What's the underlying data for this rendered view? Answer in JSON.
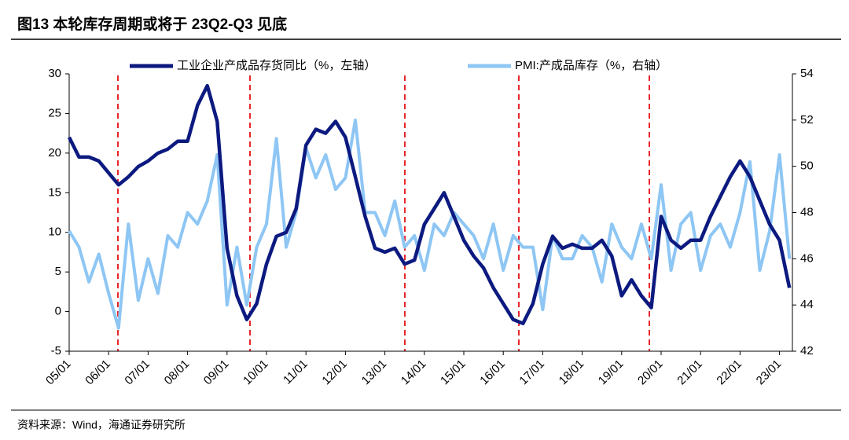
{
  "chart_data": {
    "type": "line",
    "title": "图13 本轮库存周期或将于 23Q2-Q3 见底",
    "source": "资料来源：Wind，海通证券研究所",
    "categories": [
      "05/01",
      null,
      null,
      null,
      "06/01",
      null,
      null,
      null,
      "07/01",
      null,
      null,
      null,
      "08/01",
      null,
      null,
      null,
      "09/01",
      null,
      null,
      null,
      "10/01",
      null,
      null,
      null,
      "11/01",
      null,
      null,
      null,
      "12/01",
      null,
      null,
      null,
      "13/01",
      null,
      null,
      null,
      "14/01",
      null,
      null,
      null,
      "15/01",
      null,
      null,
      null,
      "16/01",
      null,
      null,
      null,
      "17/01",
      null,
      null,
      null,
      "18/01",
      null,
      null,
      null,
      "19/01",
      null,
      null,
      null,
      "20/01",
      null,
      null,
      null,
      "21/01",
      null,
      null,
      null,
      "22/01",
      null,
      null,
      null,
      "23/01",
      null
    ],
    "series": [
      {
        "name": "工业企业产成品存货同比（%，左轴）",
        "color": "#0c1a80",
        "values": [
          22,
          19.5,
          19.5,
          19,
          17.5,
          16,
          17,
          18.3,
          19,
          20,
          20.5,
          21.5,
          21.5,
          26,
          28.5,
          24,
          8,
          2,
          -1,
          1,
          6,
          9.5,
          10,
          13,
          21,
          23,
          22.5,
          24,
          22,
          17,
          12,
          8,
          7.5,
          8,
          6,
          6.5,
          11,
          13,
          15,
          12,
          9,
          7,
          5.5,
          3,
          1,
          -1,
          -1.5,
          1,
          6,
          9.5,
          8,
          8.5,
          8,
          8,
          9,
          7,
          2,
          4,
          2,
          0.5,
          12,
          9,
          8,
          9,
          9,
          12,
          14.5,
          17,
          19,
          17,
          14,
          11,
          9,
          3
        ]
      },
      {
        "name": "PMI:产成品库存（%，右轴）",
        "color": "#8ec6f4",
        "axis": "y2",
        "values": [
          47.2,
          46.5,
          45,
          46.2,
          44.5,
          43,
          47.5,
          44.2,
          46,
          44.5,
          47,
          46.5,
          48,
          47.5,
          48.5,
          50.5,
          44,
          46.5,
          44,
          46.5,
          47.5,
          51.2,
          46.5,
          48,
          50.8,
          49.5,
          50.5,
          49,
          49.5,
          52,
          48,
          48,
          47,
          48.5,
          46.5,
          47,
          45.5,
          47.5,
          47,
          48,
          47.5,
          47,
          46,
          47.5,
          45.5,
          47,
          46.5,
          46.5,
          43.8,
          47,
          46,
          46,
          47,
          46.5,
          45,
          47.5,
          46.5,
          46,
          47.5,
          46,
          49.2,
          45.5,
          47.5,
          48,
          45.5,
          47,
          47.5,
          46.5,
          48,
          50.2,
          45.5,
          47.2,
          50.5,
          46
        ]
      }
    ],
    "ylim": [
      -5,
      30
    ],
    "yticks": [
      -5,
      0,
      5,
      10,
      15,
      20,
      25,
      30
    ],
    "y2lim": [
      42,
      54
    ],
    "y2ticks": [
      42,
      44,
      46,
      48,
      50,
      52,
      54
    ],
    "grid": false
  }
}
